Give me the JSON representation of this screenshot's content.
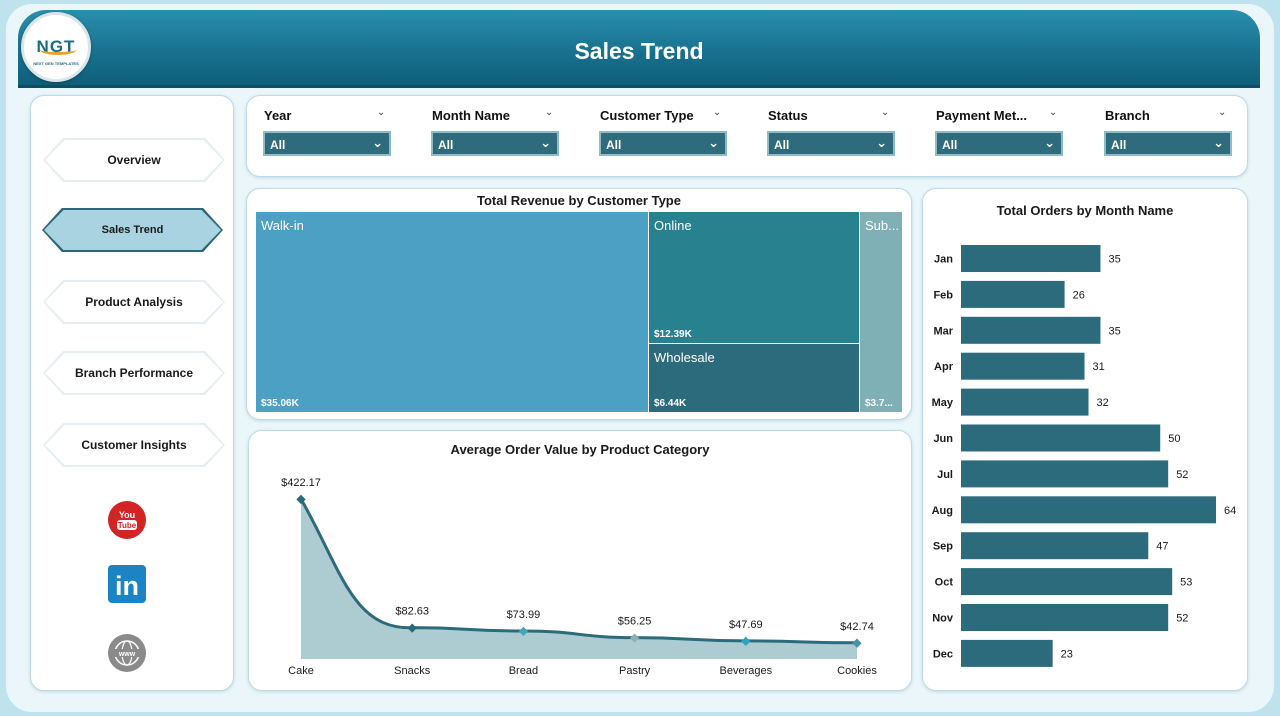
{
  "header": {
    "title": "Sales Trend"
  },
  "logo": {
    "text": "NGT",
    "subtext": "NEXT GEN TEMPLATES"
  },
  "sidebar": {
    "items": [
      {
        "label": "Overview",
        "active": false
      },
      {
        "label": "Sales Trend",
        "active": true
      },
      {
        "label": "Product Analysis",
        "active": false
      },
      {
        "label": "Branch Performance",
        "active": false
      },
      {
        "label": "Customer Insights",
        "active": false
      }
    ],
    "social": [
      {
        "name": "youtube-icon",
        "text": "You Tube",
        "color": "#d32323"
      },
      {
        "name": "linkedin-icon",
        "text": "in",
        "color": "#1a84c4"
      },
      {
        "name": "web-icon",
        "text": "www",
        "color": "#8a8a8a"
      }
    ]
  },
  "filters": [
    {
      "label": "Year",
      "value": "All"
    },
    {
      "label": "Month Name",
      "value": "All"
    },
    {
      "label": "Customer Type",
      "value": "All"
    },
    {
      "label": "Status",
      "value": "All"
    },
    {
      "label": "Payment Met...",
      "value": "All"
    },
    {
      "label": "Branch",
      "value": "All"
    }
  ],
  "treemap": {
    "title": "Total Revenue by Customer Type",
    "tiles": [
      {
        "name": "Walk-in",
        "value_label": "$35.06K",
        "color": "#4ba0c3"
      },
      {
        "name": "Online",
        "value_label": "$12.39K",
        "color": "#27818f"
      },
      {
        "name": "Wholesale",
        "value_label": "$6.44K",
        "color": "#2c6b7c"
      },
      {
        "name": "Sub...",
        "value_label": "$3.7...",
        "color": "#7fb0b5"
      }
    ]
  },
  "chart_data": [
    {
      "type": "treemap",
      "title": "Total Revenue by Customer Type",
      "categories": [
        "Walk-in",
        "Online",
        "Wholesale",
        "Sub..."
      ],
      "values": [
        35060,
        12390,
        6440,
        3700
      ]
    },
    {
      "type": "area",
      "title": "Average Order Value by Product Category",
      "categories": [
        "Cake",
        "Snacks",
        "Bread",
        "Pastry",
        "Beverages",
        "Cookies"
      ],
      "values": [
        422.17,
        82.63,
        73.99,
        56.25,
        47.69,
        42.74
      ],
      "value_labels": [
        "$422.17",
        "$82.63",
        "$73.99",
        "$56.25",
        "$47.69",
        "$42.74"
      ],
      "marker_colors": [
        "#2c6b7c",
        "#2c6b7c",
        "#3fa6b8",
        "#8fb1b4",
        "#2aa3c6",
        "#4a90a8"
      ],
      "ylim": [
        0,
        422.17
      ]
    },
    {
      "type": "bar",
      "orientation": "horizontal",
      "title": "Total Orders by Month Name",
      "categories": [
        "Jan",
        "Feb",
        "Mar",
        "Apr",
        "May",
        "Jun",
        "Jul",
        "Aug",
        "Sep",
        "Oct",
        "Nov",
        "Dec"
      ],
      "values": [
        35,
        26,
        35,
        31,
        32,
        50,
        52,
        64,
        47,
        53,
        52,
        23
      ],
      "xlim": [
        0,
        64
      ]
    }
  ],
  "colors": {
    "header": "#176f8c",
    "bar": "#2c6b7c",
    "area_fill": "#a9c9cf",
    "line": "#2c6b7c",
    "filter_box": "#2e6b7c"
  }
}
